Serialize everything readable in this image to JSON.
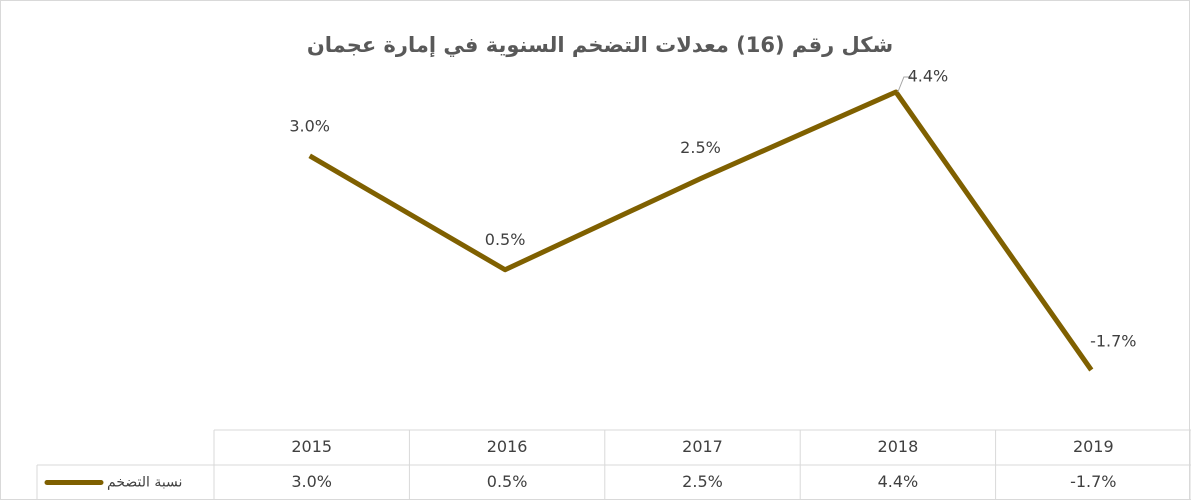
{
  "chart_data": {
    "type": "line",
    "title": "شكل رقم (16)  معدلات التضخم السنوية في إمارة عجمان",
    "categories": [
      "2015",
      "2016",
      "2017",
      "2018",
      "2019"
    ],
    "series": [
      {
        "name": "نسبة التضخم",
        "color": "#7f6000",
        "values": [
          3.0,
          0.5,
          2.5,
          4.4,
          -1.7
        ],
        "value_labels": [
          "3.0%",
          "0.5%",
          "2.5%",
          "4.4%",
          "-1.7%"
        ]
      }
    ]
  }
}
